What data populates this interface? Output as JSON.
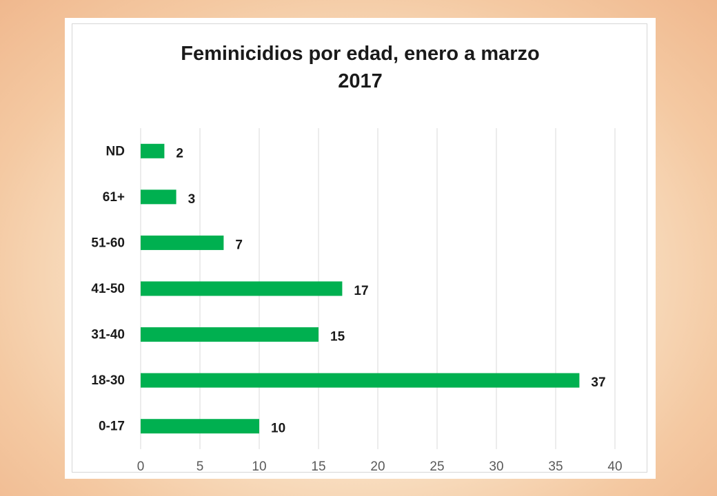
{
  "chart_data": {
    "type": "bar",
    "orientation": "horizontal",
    "title": "Feminicidios por edad, enero a marzo 2017",
    "title_lines": [
      "Feminicidios por edad, enero a marzo",
      "2017"
    ],
    "categories": [
      "0-17",
      "18-30",
      "31-40",
      "41-50",
      "51-60",
      "61+",
      "ND"
    ],
    "values": [
      10,
      37,
      15,
      17,
      7,
      3,
      2
    ],
    "xlim": [
      0,
      40
    ],
    "x_ticks": [
      0,
      5,
      10,
      15,
      20,
      25,
      30,
      35,
      40
    ],
    "xlabel": "",
    "ylabel": "",
    "grid": true,
    "legend": "none",
    "data_labels": true,
    "bar_color": "#00b050",
    "gridline_color": "#d9d9d9"
  }
}
